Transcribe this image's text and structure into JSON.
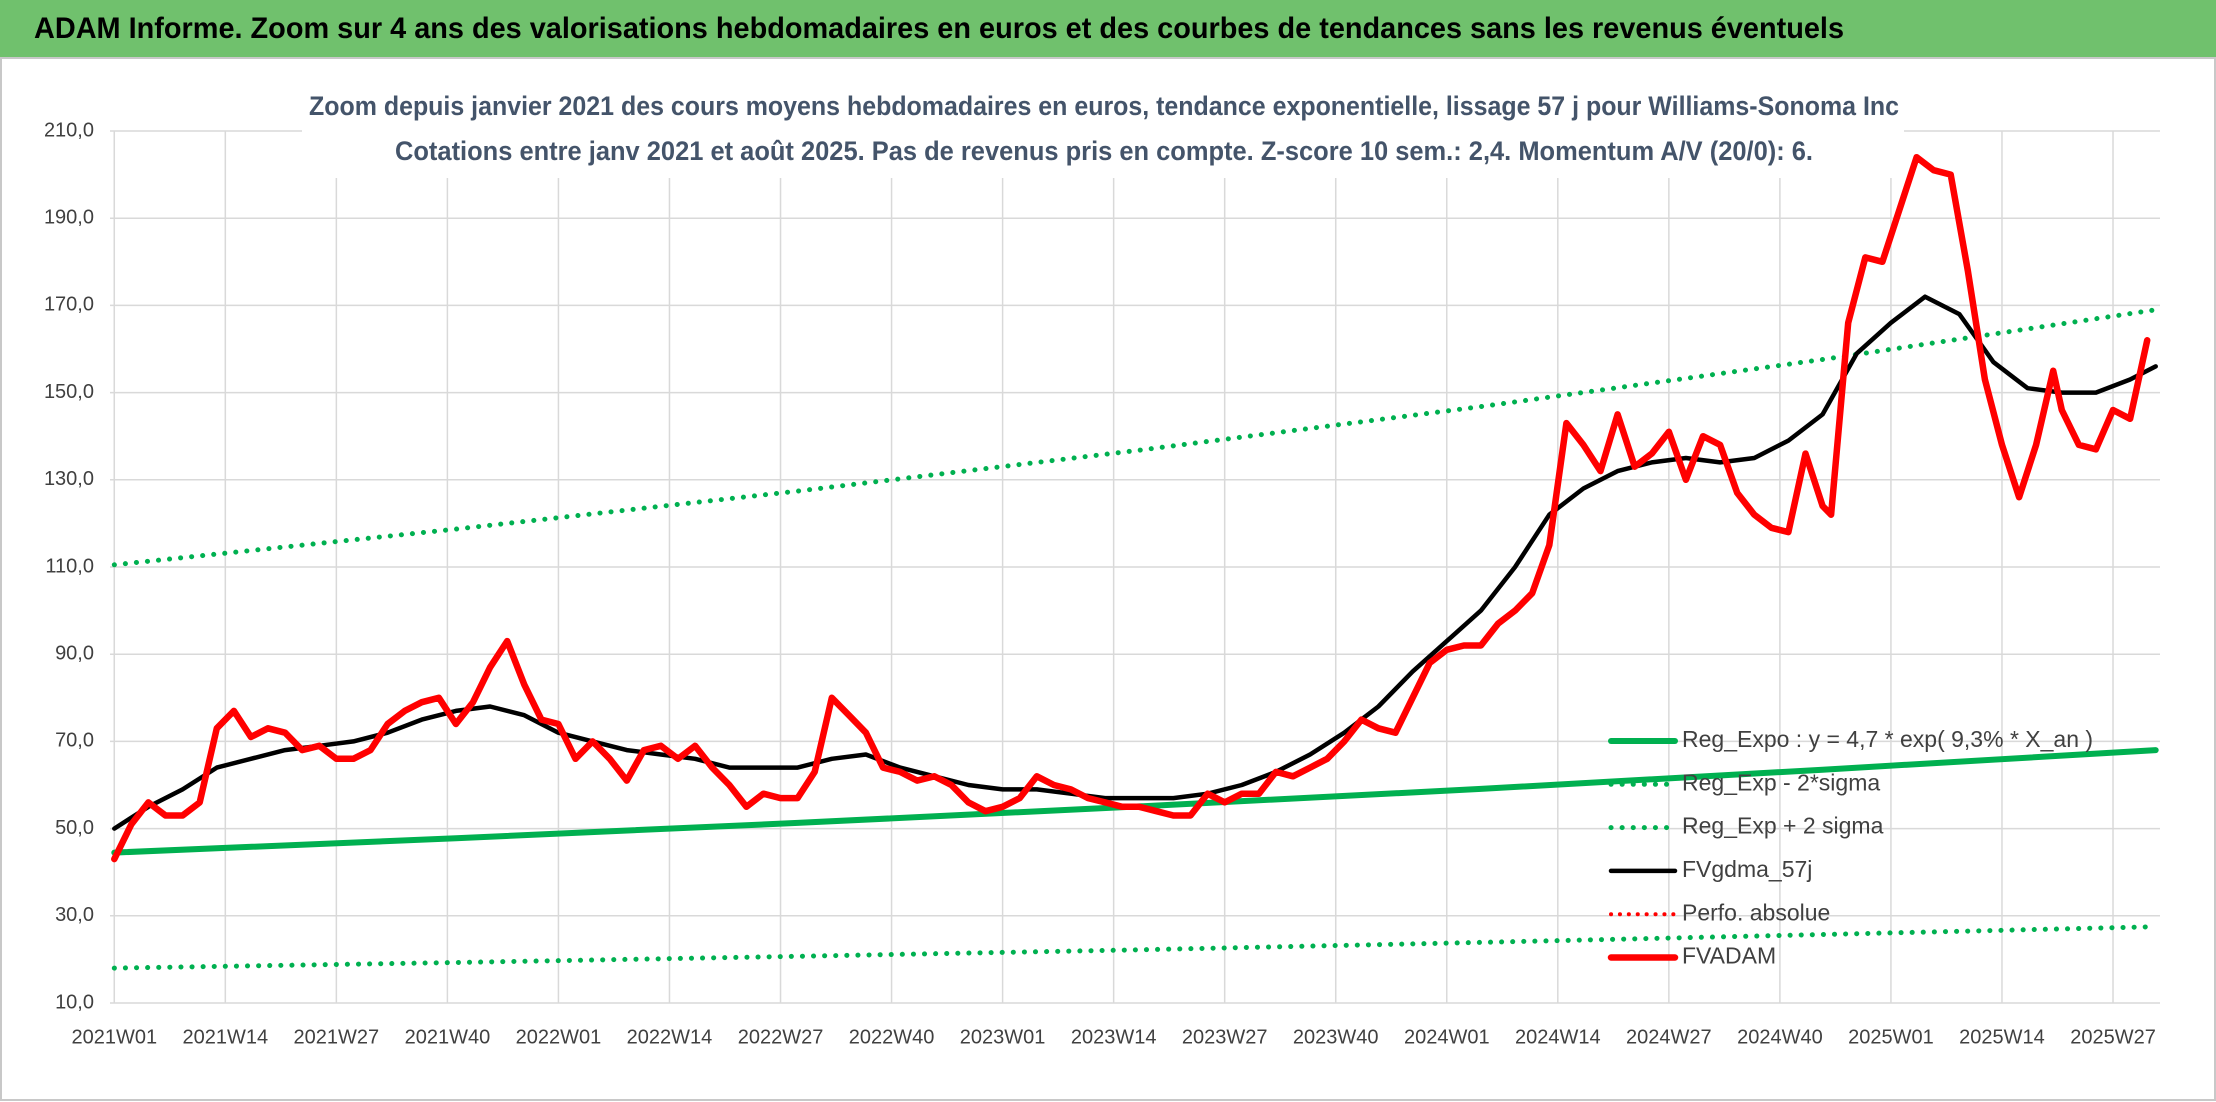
{
  "chart_data": {
    "type": "line",
    "title": "ADAM Informe. Zoom sur 4 ans des valorisations hebdomadaires en euros et des courbes de tendances sans les revenus éventuels",
    "subtitle": [
      "Zoom depuis janvier 2021 des cours moyens hebdomadaires en euros, tendance exponentielle, lissage 57 j pour Williams-Sonoma Inc",
      "Cotations entre janv 2021 et août 2025. Pas de revenus pris en compte. Z-score 10 sem.: 2,4. Momentum A/V (20/0): 6."
    ],
    "xlim": [
      -0.5,
      239.5
    ],
    "xticks": [
      {
        "value": 0,
        "label": "2021W01"
      },
      {
        "value": 13,
        "label": "2021W14"
      },
      {
        "value": 26,
        "label": "2021W27"
      },
      {
        "value": 39,
        "label": "2021W40"
      },
      {
        "value": 52,
        "label": "2022W01"
      },
      {
        "value": 65,
        "label": "2022W14"
      },
      {
        "value": 78,
        "label": "2022W27"
      },
      {
        "value": 91,
        "label": "2022W40"
      },
      {
        "value": 104,
        "label": "2023W01"
      },
      {
        "value": 117,
        "label": "2023W14"
      },
      {
        "value": 130,
        "label": "2023W27"
      },
      {
        "value": 143,
        "label": "2023W40"
      },
      {
        "value": 156,
        "label": "2024W01"
      },
      {
        "value": 169,
        "label": "2024W14"
      },
      {
        "value": 182,
        "label": "2024W27"
      },
      {
        "value": 195,
        "label": "2024W40"
      },
      {
        "value": 208,
        "label": "2025W01"
      },
      {
        "value": 221,
        "label": "2025W14"
      },
      {
        "value": 234,
        "label": "2025W27"
      }
    ],
    "ylim": [
      10,
      210
    ],
    "yticks": [
      {
        "value": 10,
        "label": "10,0"
      },
      {
        "value": 30,
        "label": "30,0"
      },
      {
        "value": 50,
        "label": "50,0"
      },
      {
        "value": 70,
        "label": "70,0"
      },
      {
        "value": 90,
        "label": "90,0"
      },
      {
        "value": 110,
        "label": "110,0"
      },
      {
        "value": 130,
        "label": "130,0"
      },
      {
        "value": 150,
        "label": "150,0"
      },
      {
        "value": 170,
        "label": "170,0"
      },
      {
        "value": 190,
        "label": "190,0"
      },
      {
        "value": 210,
        "label": "210,0"
      }
    ],
    "grid": true,
    "legend": "right",
    "series": [
      {
        "name": "Reg_Expo : y = 4,7 * exp( 9,3% *  X_an )",
        "color": "#00b050",
        "style": "solid",
        "width": 6,
        "x": [
          0,
          40,
          80,
          120,
          160,
          200,
          239
        ],
        "values": [
          44.5,
          47.8,
          51.3,
          55.1,
          59.1,
          63.5,
          68
        ]
      },
      {
        "name": "Reg_Exp - 2*sigma",
        "color": "#00b050",
        "style": "dotted",
        "width": 5,
        "x": [
          0,
          40,
          80,
          120,
          160,
          200,
          239
        ],
        "values": [
          18,
          19.3,
          20.7,
          22.2,
          23.9,
          25.7,
          27.5
        ]
      },
      {
        "name": "Reg_Exp + 2 sigma",
        "color": "#00b050",
        "style": "dotted",
        "width": 5,
        "x": [
          0,
          40,
          80,
          120,
          160,
          200,
          239
        ],
        "values": [
          110.5,
          118.7,
          127.4,
          136.8,
          146.8,
          157.6,
          169
        ]
      },
      {
        "name": "FVgdma_57j",
        "color": "#000000",
        "style": "solid",
        "width": 4.5,
        "x": [
          0,
          4,
          8,
          12,
          16,
          20,
          24,
          28,
          32,
          36,
          40,
          44,
          48,
          52,
          56,
          60,
          64,
          68,
          72,
          76,
          80,
          84,
          88,
          92,
          96,
          100,
          104,
          108,
          112,
          116,
          120,
          124,
          128,
          132,
          136,
          140,
          144,
          148,
          152,
          156,
          160,
          164,
          168,
          172,
          176,
          180,
          184,
          188,
          192,
          196,
          200,
          204,
          208,
          212,
          216,
          220,
          224,
          228,
          232,
          236,
          239
        ],
        "values": [
          50,
          55,
          59,
          64,
          66,
          68,
          69,
          70,
          72,
          75,
          77,
          78,
          76,
          72,
          70,
          68,
          67,
          66,
          64,
          64,
          64,
          66,
          67,
          64,
          62,
          60,
          59,
          59,
          58,
          57,
          57,
          57,
          58,
          60,
          63,
          67,
          72,
          78,
          86,
          93,
          100,
          110,
          122,
          128,
          132,
          134,
          135,
          134,
          135,
          139,
          145,
          159,
          166,
          172,
          168,
          157,
          151,
          150,
          150,
          153,
          156
        ]
      },
      {
        "name": "Perfo. absolue",
        "color": "#ff0000",
        "style": "dotted",
        "width": 4,
        "x": [],
        "values": []
      },
      {
        "name": "FVADAM",
        "color": "#ff0000",
        "style": "solid",
        "width": 6.5,
        "x": [
          0,
          2,
          4,
          6,
          8,
          10,
          12,
          14,
          16,
          18,
          20,
          22,
          24,
          26,
          28,
          30,
          32,
          34,
          36,
          38,
          40,
          42,
          44,
          46,
          48,
          50,
          52,
          54,
          56,
          58,
          60,
          62,
          64,
          66,
          68,
          70,
          72,
          74,
          76,
          78,
          80,
          82,
          84,
          86,
          88,
          90,
          92,
          94,
          96,
          98,
          100,
          102,
          104,
          106,
          108,
          110,
          112,
          114,
          116,
          118,
          120,
          122,
          124,
          126,
          128,
          130,
          132,
          134,
          136,
          138,
          140,
          142,
          144,
          146,
          148,
          150,
          152,
          154,
          156,
          158,
          160,
          162,
          164,
          166,
          168,
          170,
          172,
          174,
          176,
          178,
          180,
          182,
          184,
          186,
          188,
          190,
          192,
          194,
          196,
          198,
          200,
          201,
          203,
          205,
          207,
          209,
          211,
          213,
          215,
          217,
          219,
          221,
          223,
          225,
          227,
          228,
          230,
          232,
          234,
          236,
          238
        ],
        "values": [
          43,
          51,
          56,
          53,
          53,
          56,
          73,
          77,
          71,
          73,
          72,
          68,
          69,
          66,
          66,
          68,
          74,
          77,
          79,
          80,
          74,
          79,
          87,
          93,
          83,
          75,
          74,
          66,
          70,
          66,
          61,
          68,
          69,
          66,
          69,
          64,
          60,
          55,
          58,
          57,
          57,
          63,
          80,
          76,
          72,
          64,
          63,
          61,
          62,
          60,
          56,
          54,
          55,
          57,
          62,
          60,
          59,
          57,
          56,
          55,
          55,
          54,
          53,
          53,
          58,
          56,
          58,
          58,
          63,
          62,
          64,
          66,
          70,
          75,
          73,
          72,
          80,
          88,
          91,
          92,
          92,
          97,
          100,
          104,
          115,
          143,
          138,
          132,
          145,
          133,
          136,
          141,
          130,
          140,
          138,
          127,
          122,
          119,
          118,
          136,
          124,
          122,
          166,
          181,
          180,
          192,
          204,
          201,
          200,
          178,
          153,
          138,
          126,
          138,
          155,
          146,
          138,
          137,
          146,
          144,
          162
        ]
      }
    ]
  }
}
